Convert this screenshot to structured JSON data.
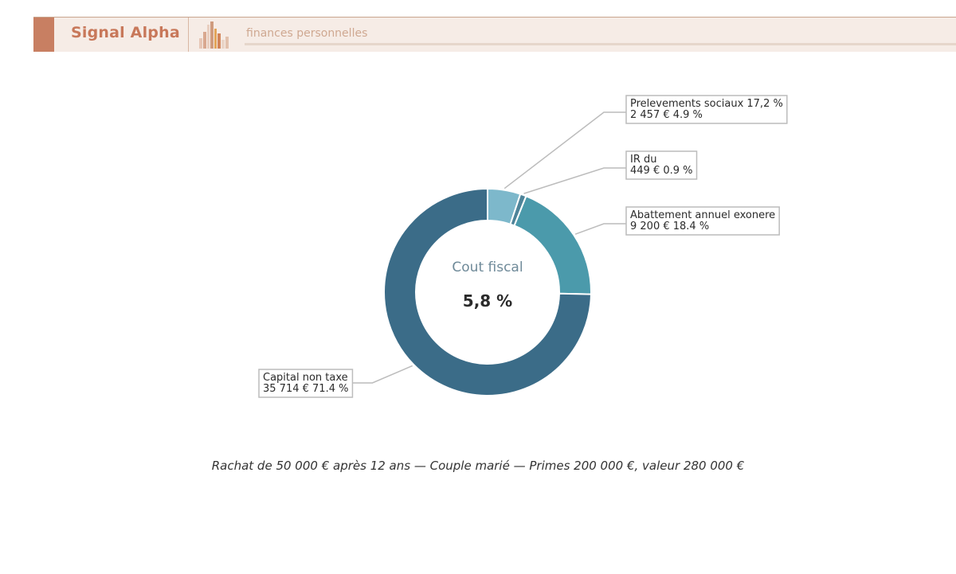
{
  "header": {
    "brand": "Signal Alpha",
    "tagline": "finances personnelles",
    "accent_color": "#c87f62"
  },
  "chart_data": {
    "type": "pie",
    "donut": true,
    "center_title": "Cout fiscal",
    "center_value": "5,8 %",
    "slices": [
      {
        "label": "Prelevements sociaux 17,2 %",
        "amount": 2457,
        "amount_text": "2 457 €",
        "pct": 4.9,
        "pct_text": "4.9 %",
        "color": "#7db8cb"
      },
      {
        "label": "IR du",
        "amount": 449,
        "amount_text": "449 €",
        "pct": 0.9,
        "pct_text": "0.9 %",
        "color": "#4e8499"
      },
      {
        "label": "Abattement annuel exonere",
        "amount": 9200,
        "amount_text": "9 200 €",
        "pct": 18.4,
        "pct_text": "18.4 %",
        "color": "#4b9aab"
      },
      {
        "label": "Capital non taxe",
        "amount": 35714,
        "amount_text": "35 714 €",
        "pct": 71.4,
        "pct_text": "71.4 %",
        "color": "#3b6c88"
      }
    ]
  },
  "caption": "Rachat de 50 000 € après 12 ans — Couple marié — Primes 200 000 €, valeur 280 000 €"
}
